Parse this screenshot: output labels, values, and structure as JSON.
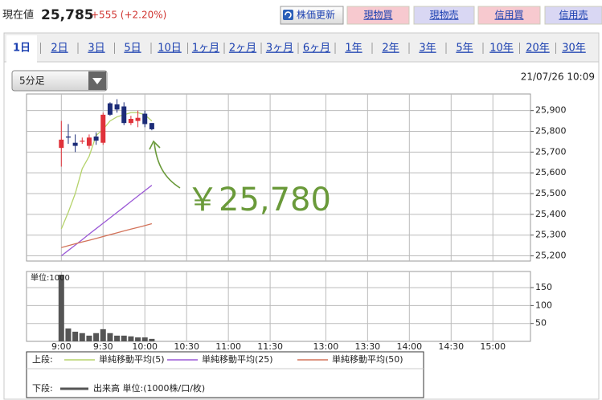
{
  "header": {
    "label": "現在値",
    "price": "25,785",
    "change": "+555 (+2.20%)"
  },
  "buttons": [
    "株価更新",
    "現物買",
    "現物売",
    "信用買",
    "信用売"
  ],
  "tabs": [
    "1日",
    "2日",
    "3日",
    "5日",
    "10日",
    "1ヶ月",
    "2ヶ月",
    "3ヶ月",
    "6ヶ月",
    "1年",
    "2年",
    "3年",
    "5年",
    "10年",
    "20年",
    "30年"
  ],
  "dropdown": "5分足",
  "timestamp": "21/07/26 10:09",
  "legend": {
    "upper": "上段:",
    "lower": "下段:"
  },
  "chart_data": [
    {
      "type": "candlestick",
      "x": [
        0,
        5,
        10,
        15,
        20,
        25,
        30,
        35,
        40,
        45,
        50,
        55,
        60,
        65
      ],
      "open": [
        25720,
        25775,
        25745,
        25750,
        25730,
        25775,
        25745,
        25935,
        25930,
        25920,
        25840,
        25850,
        25885,
        25840
      ],
      "high": [
        25850,
        25835,
        25785,
        25770,
        25785,
        25795,
        25890,
        25940,
        25955,
        25940,
        25875,
        25900,
        25900,
        25840
      ],
      "low": [
        25630,
        25740,
        25700,
        25740,
        25715,
        25735,
        25735,
        25875,
        25890,
        25830,
        25830,
        25820,
        25820,
        25805
      ],
      "close": [
        25760,
        25770,
        25730,
        25755,
        25770,
        25755,
        25880,
        25880,
        25905,
        25840,
        25860,
        25865,
        25835,
        25810
      ],
      "up_color": "#e0323a",
      "down_color": "#1c2c78",
      "series": [
        {
          "name": "単純移動平均(5)",
          "color": "#b5d36b",
          "values": [
            25330,
            25410,
            25500,
            25620,
            25680,
            25780,
            25810,
            25850,
            25870,
            25880,
            25890,
            25890,
            25880,
            25850
          ]
        },
        {
          "name": "単純移動平均(25)",
          "color": "#9b59d6",
          "values": [
            25200,
            25226,
            25252,
            25278,
            25305,
            25331,
            25357,
            25383,
            25409,
            25435,
            25462,
            25488,
            25514,
            25540
          ]
        },
        {
          "name": "単純移動平均(50)",
          "color": "#d3735a",
          "values": [
            25240,
            25249,
            25258,
            25267,
            25275,
            25284,
            25293,
            25302,
            25311,
            25320,
            25329,
            25337,
            25346,
            25355
          ]
        }
      ],
      "annotation": "￥25,780",
      "xlim": [
        -25,
        337
      ],
      "ylim": [
        25175,
        25980
      ],
      "yticks": [
        {
          "value": 25200,
          "label": "25,200"
        },
        {
          "value": 25300,
          "label": "25,300"
        },
        {
          "value": 25400,
          "label": "25,400"
        },
        {
          "value": 25500,
          "label": "25,500"
        },
        {
          "value": 25600,
          "label": "25,600"
        },
        {
          "value": 25700,
          "label": "25,700"
        },
        {
          "value": 25800,
          "label": "25,800"
        },
        {
          "value": 25900,
          "label": "25,900"
        }
      ],
      "grid": true
    },
    {
      "type": "bar",
      "series_name": "出来高 単位:(1000株/口/枚)",
      "unit_label": "単位:1000",
      "color": "#555555",
      "x": [
        0,
        5,
        10,
        15,
        20,
        25,
        30,
        35,
        40,
        45,
        50,
        55,
        60,
        65
      ],
      "values": [
        186,
        36,
        27,
        23,
        16,
        23,
        34,
        23,
        16,
        16,
        14,
        11,
        11,
        7
      ],
      "xlim": [
        -25,
        337
      ],
      "ylim": [
        0,
        195
      ],
      "yticks": [
        50,
        100,
        150
      ],
      "xticks": [
        {
          "value": 0,
          "label": "9:00"
        },
        {
          "value": 30,
          "label": "9:30"
        },
        {
          "value": 60,
          "label": "10:00"
        },
        {
          "value": 90,
          "label": "10:30"
        },
        {
          "value": 120,
          "label": "11:00"
        },
        {
          "value": 150,
          "label": "11:30"
        },
        {
          "value": 190,
          "label": "13:00"
        },
        {
          "value": 220,
          "label": "13:30"
        },
        {
          "value": 250,
          "label": "14:00"
        },
        {
          "value": 280,
          "label": "14:30"
        },
        {
          "value": 310,
          "label": "15:00"
        }
      ],
      "grid": true
    }
  ]
}
